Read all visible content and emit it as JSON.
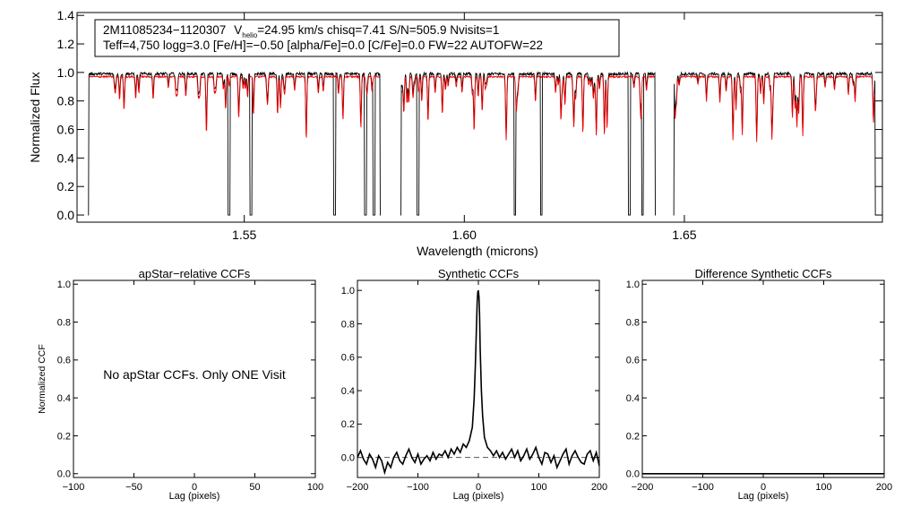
{
  "chart_data": [
    {
      "type": "line",
      "id": "spectrum",
      "xlabel": "Wavelength (microns)",
      "ylabel": "Normalized Flux",
      "xlim": [
        1.512,
        1.695
      ],
      "ylim": [
        -0.05,
        1.42
      ],
      "xticks": [
        1.55,
        1.6,
        1.65
      ],
      "xtick_labels": [
        "1.55",
        "1.60",
        "1.65"
      ],
      "yticks": [
        0.0,
        0.2,
        0.4,
        0.6,
        0.8,
        1.0,
        1.2,
        1.4
      ],
      "ytick_labels": [
        "0.0",
        "0.2",
        "0.4",
        "0.6",
        "0.8",
        "1.0",
        "1.2",
        "1.4"
      ],
      "segments": [
        [
          1.5145,
          1.581
        ],
        [
          1.5855,
          1.6435
        ],
        [
          1.6475,
          1.6935
        ]
      ],
      "deep_drops": [
        1.5465,
        1.5515,
        1.5705,
        1.5775,
        1.5795,
        1.5895,
        1.6115,
        1.6175,
        1.6375,
        1.6405
      ],
      "series": [
        {
          "name": "observed",
          "color": "#000000",
          "continuum": 0.99
        },
        {
          "name": "synthetic",
          "color": "#ee0000",
          "continuum": 0.97
        }
      ],
      "info": {
        "id_text": "2M11085234−1120307",
        "v_label": "V",
        "v_sub": "helio",
        "v_text": "=24.95 km/s  chisq=7.41  S/N=505.9  Nvisits=1",
        "line2": "Teff=4,750 logg=3.0 [Fe/H]=−0.50 [alpha/Fe]=0.0 [C/Fe]=0.0 FW=22 AUTOFW=22"
      }
    },
    {
      "type": "line",
      "id": "apstar",
      "title": "apStar−relative CCFs",
      "xlabel": "Lag (pixels)",
      "ylabel": "Normalized CCF",
      "xlim": [
        -100,
        100
      ],
      "ylim": [
        -0.02,
        1.02
      ],
      "xticks": [
        -100,
        -50,
        0,
        50,
        100
      ],
      "xtick_labels": [
        "−100",
        "−50",
        "0",
        "50",
        "100"
      ],
      "yticks": [
        0.0,
        0.2,
        0.4,
        0.6,
        0.8,
        1.0
      ],
      "ytick_labels": [
        "0.0",
        "0.2",
        "0.4",
        "0.6",
        "0.8",
        "1.0"
      ],
      "message": "No apStar CCFs.  Only ONE Visit"
    },
    {
      "type": "line",
      "id": "synthetic",
      "title": "Synthetic CCFs",
      "xlabel": "Lag (pixels)",
      "xlim": [
        -200,
        200
      ],
      "ylim": [
        -0.12,
        1.06
      ],
      "xticks": [
        -200,
        -100,
        0,
        100,
        200
      ],
      "xtick_labels": [
        "−200",
        "−100",
        "0",
        "100",
        "200"
      ],
      "yticks": [
        0.0,
        0.2,
        0.4,
        0.6,
        0.8,
        1.0
      ],
      "ytick_labels": [
        "0.0",
        "0.2",
        "0.4",
        "0.6",
        "0.8",
        "1.0"
      ],
      "baseline": 0.0,
      "x": [
        -200,
        -195,
        -190,
        -185,
        -180,
        -175,
        -170,
        -165,
        -160,
        -155,
        -150,
        -145,
        -140,
        -135,
        -130,
        -125,
        -120,
        -115,
        -110,
        -105,
        -100,
        -95,
        -90,
        -85,
        -80,
        -75,
        -70,
        -65,
        -60,
        -55,
        -50,
        -45,
        -40,
        -35,
        -30,
        -25,
        -20,
        -15,
        -10,
        -7,
        -5,
        -3,
        -2,
        -1,
        0,
        1,
        2,
        3,
        5,
        7,
        10,
        15,
        20,
        25,
        30,
        35,
        40,
        45,
        50,
        55,
        60,
        65,
        70,
        75,
        80,
        85,
        90,
        95,
        100,
        105,
        110,
        115,
        120,
        125,
        130,
        135,
        140,
        145,
        150,
        155,
        160,
        165,
        170,
        175,
        180,
        185,
        190,
        195,
        200
      ],
      "y": [
        0.0,
        0.04,
        -0.01,
        -0.04,
        0.02,
        -0.01,
        -0.06,
        0.01,
        -0.02,
        -0.09,
        -0.03,
        -0.06,
        0.0,
        0.03,
        -0.02,
        -0.04,
        0.01,
        0.05,
        0.0,
        -0.03,
        0.02,
        -0.04,
        -0.01,
        0.01,
        -0.02,
        0.03,
        -0.01,
        0.02,
        0.01,
        0.04,
        0.0,
        0.05,
        0.02,
        0.06,
        0.03,
        0.08,
        0.06,
        0.1,
        0.18,
        0.35,
        0.55,
        0.8,
        0.93,
        0.99,
        1.0,
        0.96,
        0.85,
        0.65,
        0.4,
        0.25,
        0.12,
        0.06,
        0.04,
        0.01,
        0.04,
        0.0,
        0.03,
        -0.01,
        0.02,
        0.05,
        0.0,
        0.04,
        -0.02,
        0.01,
        0.05,
        -0.01,
        0.02,
        0.06,
        0.0,
        -0.04,
        0.03,
        0.02,
        -0.03,
        0.01,
        -0.06,
        -0.02,
        0.02,
        0.05,
        -0.04,
        0.01,
        0.04,
        0.0,
        -0.03,
        -0.04,
        0.02,
        0.04,
        -0.02,
        0.03,
        -0.05
      ]
    },
    {
      "type": "line",
      "id": "difference",
      "title": "Difference Synthetic CCFs",
      "xlabel": "Lag (pixels)",
      "xlim": [
        -200,
        200
      ],
      "ylim": [
        -0.02,
        1.02
      ],
      "xticks": [
        -200,
        -100,
        0,
        100,
        200
      ],
      "xtick_labels": [
        "−200",
        "−100",
        "0",
        "100",
        "200"
      ],
      "yticks": [
        0.0,
        0.2,
        0.4,
        0.6,
        0.8,
        1.0
      ],
      "ytick_labels": [
        "0.0",
        "0.2",
        "0.4",
        "0.6",
        "0.8",
        "1.0"
      ],
      "baseline": 0.0
    }
  ]
}
